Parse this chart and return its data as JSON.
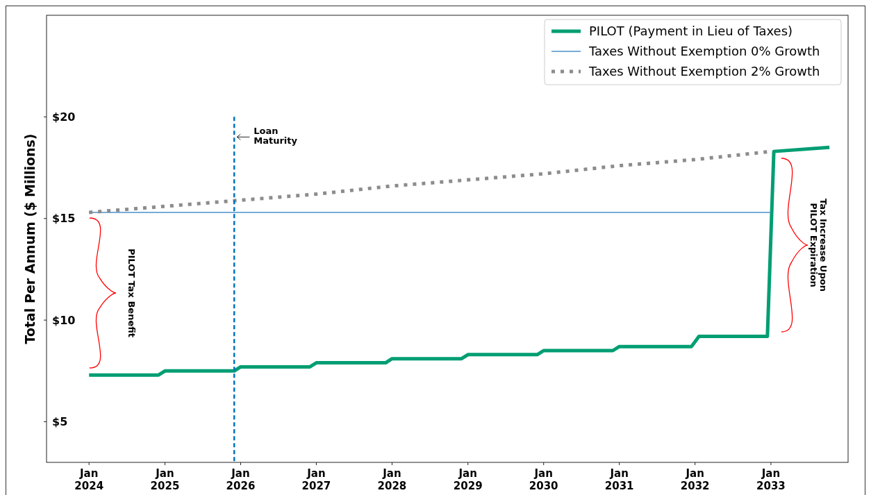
{
  "chart_data": {
    "type": "line",
    "ylabel": "Total Per Annum ($ Millions)",
    "xlim": [
      "2023-06-10",
      "2034-01-08"
    ],
    "xticks": [
      {
        "value": "2024-01-01",
        "label": "Jan\n2024"
      },
      {
        "value": "2025-01-01",
        "label": "Jan\n2025"
      },
      {
        "value": "2026-01-01",
        "label": "Jan\n2026"
      },
      {
        "value": "2027-01-01",
        "label": "Jan\n2027"
      },
      {
        "value": "2028-01-01",
        "label": "Jan\n2028"
      },
      {
        "value": "2029-01-01",
        "label": "Jan\n2029"
      },
      {
        "value": "2030-01-01",
        "label": "Jan\n2030"
      },
      {
        "value": "2031-01-01",
        "label": "Jan\n2031"
      },
      {
        "value": "2032-01-01",
        "label": "Jan\n2032"
      },
      {
        "value": "2033-01-01",
        "label": "Jan\n2033"
      }
    ],
    "ylim": [
      3,
      25
    ],
    "yticks": [
      {
        "value": 5,
        "label": "$5"
      },
      {
        "value": 10,
        "label": "$10"
      },
      {
        "value": 15,
        "label": "$15"
      },
      {
        "value": 20,
        "label": "$20"
      }
    ],
    "grid": false,
    "legend": "top right",
    "marker": "none",
    "series": [
      {
        "name": "PILOT (Payment in Lieu of Taxes)",
        "color": "#009e73",
        "line_style": "solid",
        "x": [
          "2024-01-01",
          "2024-12-01",
          "2025-01-01",
          "2025-12-01",
          "2026-01-01",
          "2026-12-01",
          "2027-01-01",
          "2027-12-01",
          "2028-01-01",
          "2028-12-01",
          "2029-01-01",
          "2029-12-01",
          "2030-01-01",
          "2030-12-01",
          "2031-01-01",
          "2031-12-15",
          "2032-01-20",
          "2032-12-15",
          "2033-01-15",
          "2033-10-10"
        ],
        "values": [
          7.3,
          7.3,
          7.5,
          7.5,
          7.7,
          7.7,
          7.9,
          7.9,
          8.1,
          8.1,
          8.3,
          8.3,
          8.5,
          8.5,
          8.7,
          8.7,
          9.2,
          9.2,
          18.3,
          18.5
        ]
      },
      {
        "name": "Taxes Without Exemption 0% Growth",
        "color": "#4a90c8",
        "line_style": "solid",
        "x": [
          "2024-01-01",
          "2033-01-01"
        ],
        "values": [
          15.3,
          15.3
        ]
      },
      {
        "name": "Taxes Without Exemption 2% Growth",
        "color": "#8c8c8c",
        "line_style": "dotted",
        "x": [
          "2024-01-01",
          "2025-01-01",
          "2026-01-01",
          "2027-01-01",
          "2028-01-01",
          "2029-01-01",
          "2030-01-01",
          "2031-01-01",
          "2032-01-01",
          "2033-01-01"
        ],
        "values": [
          15.3,
          15.6,
          15.9,
          16.2,
          16.6,
          16.9,
          17.2,
          17.6,
          17.9,
          18.3
        ]
      }
    ],
    "ref_lines": [
      {
        "axis": "x",
        "value": "2025-12-01",
        "label": "Loan\nMaturity",
        "color": "#0072bd",
        "line_style": "dashed"
      }
    ],
    "annotations": [
      "PILOT Tax Benefit",
      "Tax Increase Upon\nPILOT Expiration"
    ]
  }
}
